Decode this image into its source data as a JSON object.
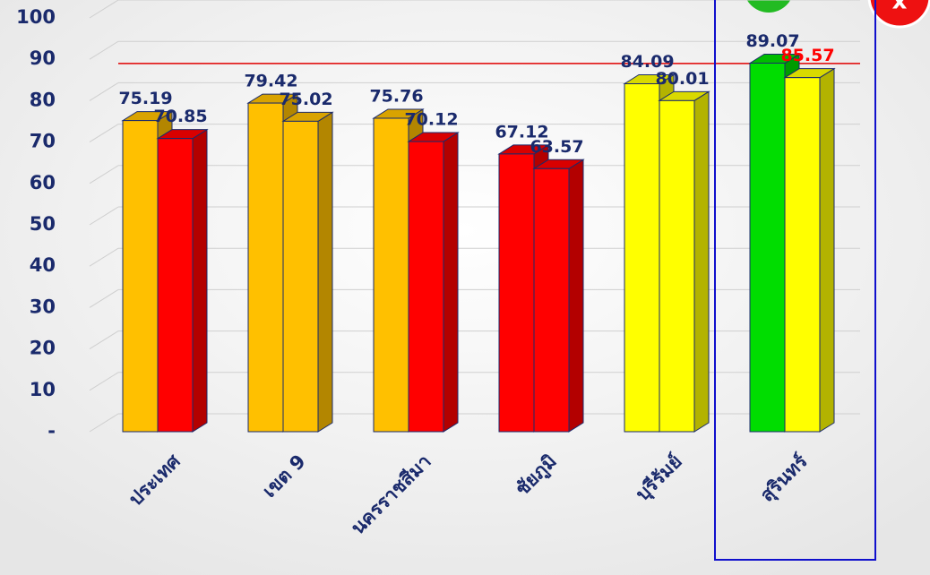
{
  "chart_data": {
    "type": "bar3d",
    "categories": [
      "ประเทศ",
      "เขต 9",
      "นครราชสีมา",
      "ชัยภูมิ",
      "บุรีรัมย์",
      "สุรินทร์"
    ],
    "series": [
      {
        "values": [
          75.19,
          79.42,
          75.76,
          67.12,
          84.09,
          89.07
        ],
        "colors": [
          "#ffc000",
          "#ffc000",
          "#ffc000",
          "#ff0000",
          "#ffff00",
          "#00dd00"
        ]
      },
      {
        "values": [
          70.85,
          75.02,
          70.12,
          63.57,
          80.01,
          85.57
        ],
        "colors": [
          "#ff0000",
          "#ffc000",
          "#ff0000",
          "#ff0000",
          "#ffff00",
          "#ffff00"
        ],
        "label_colors": [
          "#1a2a6c",
          "#1a2a6c",
          "#1a2a6c",
          "#1a2a6c",
          "#1a2a6c",
          "#ff0000"
        ]
      }
    ],
    "ylim": [
      0,
      100
    ],
    "yticks": [
      {
        "value": 0,
        "label": "-"
      },
      10,
      20,
      30,
      40,
      50,
      60,
      70,
      80,
      90,
      100
    ],
    "grid": true,
    "reference_line": {
      "value": 89,
      "color": "#e00000"
    },
    "highlight_category": 5,
    "badge": "x"
  }
}
